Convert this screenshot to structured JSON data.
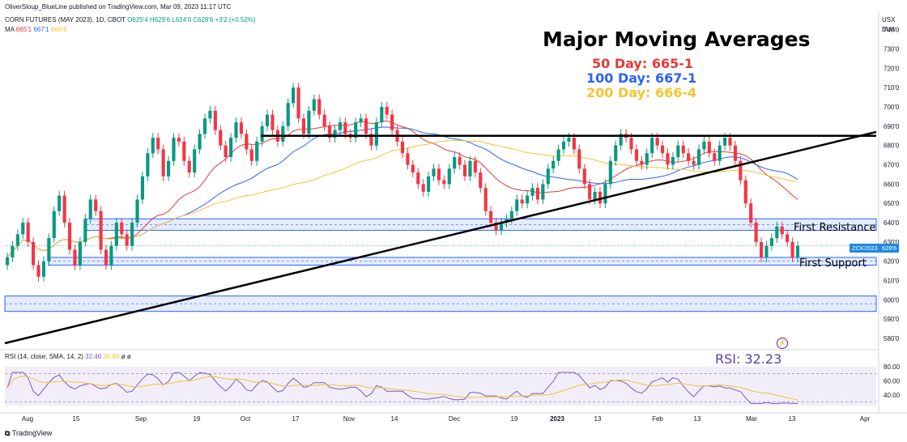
{
  "header": {
    "published": "OliverSloup_BlueLine published on TradingView.com, Mar 09, 2023 11:17 UTC",
    "symbol_line": "CORN FUTURES (MAY 2023), 1D, CBOT",
    "ohlc": "O625'4 H629'6 L624'0 C628'6 +3'2 (+0.52%)",
    "ma_label": "MA",
    "ma_values": [
      "665'1",
      "667'1",
      "666'4"
    ]
  },
  "top_right": {
    "currency": "USX",
    "unit": "BUA"
  },
  "annotation": {
    "title": "Major Moving Averages",
    "ma_lines": [
      {
        "text": "50 Day: 665-1",
        "color": "#e53935"
      },
      {
        "text": "100 Day: 667-1",
        "color": "#2962ff"
      },
      {
        "text": "200 Day: 666-4",
        "color": "#f4c430"
      }
    ],
    "first_resistance": "First Resistance",
    "first_support": "First Support",
    "rsi_callout": "RSI: 32.23"
  },
  "price_tag": {
    "symbol": "ZCK2023",
    "value": "628'6"
  },
  "rsi_header": {
    "label": "RSI (14, close, SMA, 14, 2)",
    "values": [
      "32.46",
      "36.88",
      "ø",
      "ø"
    ]
  },
  "footer": {
    "brand": "TradingView"
  },
  "colors": {
    "up": "#089981",
    "down": "#f23645",
    "ma50": "#e53935",
    "ma100": "#2962ff",
    "ma200": "#f4c430",
    "zone": "#2962ff",
    "rsi": "#7e57c2",
    "rsi_ma": "#f4c430"
  },
  "chart_data": {
    "type": "candlestick",
    "price_axis_ticks": [
      "740'0",
      "730'0",
      "720'0",
      "710'0",
      "700'0",
      "690'0",
      "680'0",
      "670'0",
      "660'0",
      "650'0",
      "640'0",
      "630'0",
      "620'0",
      "610'0",
      "600'0",
      "590'0",
      "580'0"
    ],
    "rsi_axis_ticks": [
      "80.00",
      "60.00",
      "40.00"
    ],
    "x_tick_labels": [
      "Aug",
      "15",
      "Sep",
      "19",
      "Oct",
      "17",
      "Nov",
      "14",
      "Dec",
      "19",
      "2023",
      "13",
      "Feb",
      "13",
      "Mar",
      "13",
      "Apr"
    ],
    "ylim": [
      575,
      747
    ],
    "zones": {
      "first_resistance": [
        636,
        642
      ],
      "first_support": [
        618,
        622
      ],
      "lower_support": [
        594,
        602
      ]
    },
    "horizontal_line": 685,
    "closes": [
      622,
      628,
      634,
      640,
      630,
      618,
      612,
      620,
      632,
      646,
      654,
      640,
      626,
      618,
      630,
      642,
      652,
      646,
      626,
      618,
      628,
      640,
      634,
      628,
      640,
      652,
      664,
      676,
      684,
      678,
      664,
      672,
      684,
      682,
      672,
      666,
      678,
      686,
      694,
      698,
      688,
      680,
      674,
      684,
      692,
      686,
      678,
      672,
      682,
      690,
      696,
      688,
      682,
      690,
      702,
      710,
      694,
      686,
      698,
      704,
      696,
      690,
      684,
      688,
      692,
      686,
      684,
      692,
      694,
      686,
      680,
      692,
      700,
      696,
      688,
      682,
      676,
      670,
      666,
      660,
      656,
      664,
      668,
      662,
      660,
      668,
      674,
      670,
      664,
      672,
      666,
      658,
      646,
      640,
      636,
      640,
      642,
      646,
      652,
      650,
      654,
      658,
      652,
      660,
      668,
      672,
      678,
      682,
      684,
      678,
      668,
      660,
      652,
      656,
      650,
      660,
      672,
      680,
      686,
      684,
      678,
      672,
      670,
      676,
      684,
      680,
      676,
      670,
      674,
      680,
      676,
      672,
      670,
      678,
      682,
      676,
      672,
      680,
      684,
      680,
      672,
      662,
      650,
      640,
      630,
      622,
      628,
      632,
      638,
      634,
      630,
      622,
      628
    ]
  }
}
